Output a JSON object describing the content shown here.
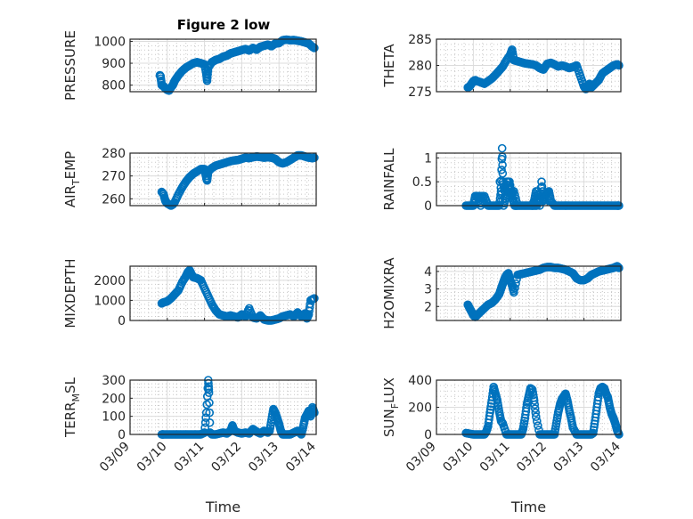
{
  "figure": {
    "title": "Figure 2 low",
    "marker_color": "#0072BD"
  },
  "chart_data": [
    {
      "type": "scatter",
      "ylabel": "PRESSURE",
      "ylim": [
        770,
        1010
      ],
      "yticks": [
        800,
        900,
        1000
      ],
      "xlim": [
        0,
        5
      ],
      "xticklabels": [
        "03/09",
        "03/10",
        "03/11",
        "03/12",
        "03/13",
        "03/14"
      ],
      "xlabel": "",
      "grid": true,
      "x": [
        0.8,
        0.82,
        0.85,
        0.9,
        0.95,
        1.0,
        1.05,
        1.1,
        1.15,
        1.2,
        1.3,
        1.4,
        1.5,
        1.6,
        1.7,
        1.8,
        1.9,
        2.0,
        2.05,
        2.07,
        2.1,
        2.2,
        2.3,
        2.4,
        2.5,
        2.6,
        2.7,
        2.8,
        2.9,
        3.0,
        3.1,
        3.2,
        3.3,
        3.4,
        3.5,
        3.6,
        3.7,
        3.8,
        3.9,
        4.0,
        4.1,
        4.2,
        4.3,
        4.4,
        4.5,
        4.6,
        4.7,
        4.8,
        4.9,
        4.95
      ],
      "y": [
        845,
        840,
        800,
        795,
        785,
        778,
        775,
        790,
        800,
        820,
        845,
        865,
        880,
        890,
        900,
        905,
        900,
        895,
        850,
        820,
        880,
        905,
        915,
        920,
        930,
        935,
        945,
        950,
        955,
        960,
        965,
        958,
        970,
        962,
        975,
        980,
        985,
        978,
        990,
        992,
        1005,
        1008,
        1005,
        1006,
        1003,
        1000,
        995,
        990,
        975,
        970
      ]
    },
    {
      "type": "scatter",
      "ylabel": "THETA",
      "ylim": [
        275,
        285
      ],
      "yticks": [
        275,
        280,
        285
      ],
      "xlim": [
        0,
        5
      ],
      "xticklabels": [
        "03/09",
        "03/10",
        "03/11",
        "03/12",
        "03/13",
        "03/14"
      ],
      "xlabel": "",
      "grid": true,
      "x": [
        0.85,
        0.9,
        0.95,
        1.0,
        1.05,
        1.1,
        1.2,
        1.3,
        1.4,
        1.5,
        1.6,
        1.7,
        1.8,
        1.9,
        2.0,
        2.05,
        2.1,
        2.2,
        2.3,
        2.4,
        2.5,
        2.6,
        2.7,
        2.8,
        2.9,
        3.0,
        3.1,
        3.2,
        3.3,
        3.4,
        3.5,
        3.6,
        3.7,
        3.8,
        3.9,
        4.0,
        4.05,
        4.1,
        4.15,
        4.2,
        4.3,
        4.4,
        4.5,
        4.6,
        4.7,
        4.8,
        4.9,
        4.95
      ],
      "y": [
        275.8,
        276,
        276.5,
        277,
        277.2,
        277,
        276.8,
        276.5,
        277,
        277.5,
        278.2,
        279,
        279.8,
        281,
        282,
        283,
        281,
        280.8,
        280.6,
        280.4,
        280.3,
        280.2,
        280,
        279.5,
        279.2,
        280.3,
        280.5,
        280.2,
        279.8,
        280,
        279.8,
        279.5,
        279.7,
        280,
        278,
        276,
        275.5,
        276,
        276.5,
        275.8,
        276.5,
        277.2,
        278.5,
        279,
        279.5,
        280,
        280.2,
        280
      ]
    },
    {
      "type": "scatter",
      "ylabel": "AIR_TEMP",
      "ylim": [
        257,
        280
      ],
      "yticks": [
        260,
        270,
        280
      ],
      "xlim": [
        0,
        5
      ],
      "xticklabels": [
        "03/09",
        "03/10",
        "03/11",
        "03/12",
        "03/13",
        "03/14"
      ],
      "xlabel": "",
      "grid": true,
      "x": [
        0.85,
        0.9,
        0.95,
        1.0,
        1.05,
        1.1,
        1.15,
        1.2,
        1.3,
        1.4,
        1.5,
        1.6,
        1.7,
        1.8,
        1.9,
        2.0,
        2.05,
        2.07,
        2.1,
        2.2,
        2.3,
        2.4,
        2.5,
        2.6,
        2.7,
        2.8,
        2.9,
        3.0,
        3.1,
        3.2,
        3.3,
        3.4,
        3.5,
        3.6,
        3.7,
        3.8,
        3.9,
        4.0,
        4.1,
        4.2,
        4.3,
        4.4,
        4.5,
        4.6,
        4.7,
        4.8,
        4.9,
        4.95
      ],
      "y": [
        263,
        262,
        259,
        258,
        257.5,
        257,
        257.5,
        258.5,
        262,
        265,
        267.5,
        269.5,
        271,
        272,
        273,
        273,
        269,
        268,
        272,
        273.5,
        274.5,
        275,
        275.5,
        276,
        276.5,
        276.8,
        277,
        277.5,
        278,
        277.8,
        278.2,
        278.5,
        278.3,
        278,
        278.2,
        278,
        277.5,
        276,
        275.5,
        276,
        277,
        278,
        279,
        279,
        278.5,
        278,
        277.8,
        278
      ]
    },
    {
      "type": "scatter",
      "ylabel": "RAINFALL",
      "ylim": [
        0,
        1.1
      ],
      "yticks": [
        0,
        0.5,
        1
      ],
      "xlim": [
        0,
        5
      ],
      "xticklabels": [
        "03/09",
        "03/10",
        "03/11",
        "03/12",
        "03/13",
        "03/14"
      ],
      "xlabel": "",
      "grid": true,
      "x": [
        0.8,
        0.9,
        1.0,
        1.05,
        1.1,
        1.2,
        1.3,
        1.4,
        1.5,
        1.6,
        1.7,
        1.75,
        1.78,
        1.8,
        1.85,
        1.9,
        1.95,
        2.0,
        2.1,
        2.2,
        2.3,
        2.4,
        2.5,
        2.6,
        2.7,
        2.75,
        2.8,
        2.85,
        2.9,
        2.95,
        3.0,
        3.05,
        3.1,
        3.2,
        3.3,
        3.4,
        3.5,
        3.6,
        3.7,
        3.8,
        3.9,
        4.0,
        4.1,
        4.2,
        4.3,
        4.4,
        4.5,
        4.6,
        4.7,
        4.8,
        4.9,
        4.95,
        1.12,
        1.25,
        1.72,
        1.82,
        1.9,
        1.98,
        2.05,
        2.12,
        2.18,
        2.6,
        2.65,
        2.7,
        3.05,
        2.72
      ],
      "y": [
        0,
        0,
        0,
        0.2,
        0.2,
        0,
        0.2,
        0,
        0,
        0,
        0,
        0.3,
        1.2,
        0.5,
        0.3,
        0.5,
        0.5,
        0.2,
        0.3,
        0,
        0,
        0,
        0,
        0,
        0,
        0.3,
        0,
        0.5,
        0.1,
        0.2,
        0.25,
        0.3,
        0.1,
        0,
        0,
        0,
        0,
        0,
        0,
        0,
        0,
        0,
        0,
        0,
        0,
        0,
        0,
        0,
        0,
        0,
        0,
        0,
        0.2,
        0.2,
        0.5,
        0,
        0.2,
        0.5,
        0.2,
        0,
        0,
        0,
        0.1,
        0.3,
        0.1,
        0
      ],
      "values_note": "0 for most points"
    },
    {
      "type": "scatter",
      "ylabel": "MIXDEPTH",
      "ylim": [
        0,
        2700
      ],
      "yticks": [
        0,
        1000,
        2000
      ],
      "xlim": [
        0,
        5
      ],
      "xticklabels": [
        "03/09",
        "03/10",
        "03/11",
        "03/12",
        "03/13",
        "03/14"
      ],
      "xlabel": "",
      "grid": true,
      "x": [
        0.85,
        0.9,
        1.0,
        1.1,
        1.2,
        1.3,
        1.4,
        1.5,
        1.55,
        1.6,
        1.65,
        1.7,
        1.8,
        1.9,
        2.0,
        2.1,
        2.2,
        2.3,
        2.4,
        2.5,
        2.6,
        2.7,
        2.8,
        2.9,
        3.0,
        3.1,
        3.2,
        3.3,
        3.4,
        3.5,
        3.6,
        3.7,
        3.8,
        3.9,
        4.0,
        4.1,
        4.2,
        4.3,
        4.4,
        4.5,
        4.6,
        4.7,
        4.75,
        4.8,
        4.85,
        4.9,
        4.95
      ],
      "y": [
        850,
        900,
        950,
        1100,
        1300,
        1500,
        1900,
        2200,
        2400,
        2500,
        2300,
        2150,
        2100,
        2000,
        1600,
        1200,
        800,
        500,
        300,
        250,
        200,
        250,
        200,
        150,
        300,
        200,
        600,
        150,
        100,
        250,
        50,
        0,
        0,
        50,
        100,
        200,
        250,
        300,
        200,
        400,
        200,
        350,
        100,
        300,
        1000,
        1050,
        1100
      ]
    },
    {
      "type": "scatter",
      "ylabel": "H2OMIXRA",
      "ylim": [
        1.2,
        4.3
      ],
      "yticks": [
        2,
        3,
        4
      ],
      "xlim": [
        0,
        5
      ],
      "xticklabels": [
        "03/09",
        "03/10",
        "03/11",
        "03/12",
        "03/13",
        "03/14"
      ],
      "xlabel": "",
      "grid": true,
      "x": [
        0.85,
        0.9,
        0.95,
        1.0,
        1.05,
        1.1,
        1.2,
        1.3,
        1.4,
        1.5,
        1.6,
        1.7,
        1.75,
        1.8,
        1.85,
        1.9,
        1.95,
        2.0,
        2.05,
        2.1,
        2.2,
        2.3,
        2.4,
        2.5,
        2.6,
        2.7,
        2.8,
        2.9,
        3.0,
        3.1,
        3.2,
        3.3,
        3.4,
        3.5,
        3.6,
        3.7,
        3.8,
        3.9,
        4.0,
        4.1,
        4.2,
        4.3,
        4.4,
        4.5,
        4.6,
        4.7,
        4.8,
        4.9,
        4.95
      ],
      "y": [
        2.1,
        1.9,
        1.7,
        1.5,
        1.4,
        1.5,
        1.7,
        1.9,
        2.1,
        2.2,
        2.4,
        2.7,
        3.0,
        3.3,
        3.6,
        3.8,
        3.9,
        3.5,
        3.2,
        2.8,
        3.8,
        3.85,
        3.9,
        3.95,
        4.0,
        4.05,
        4.1,
        4.2,
        4.25,
        4.25,
        4.2,
        4.2,
        4.15,
        4.1,
        4.0,
        3.9,
        3.6,
        3.5,
        3.5,
        3.6,
        3.8,
        3.9,
        4.0,
        4.05,
        4.1,
        4.15,
        4.2,
        4.3,
        4.2
      ]
    },
    {
      "type": "scatter",
      "ylabel": "TERR_MSL",
      "ylim": [
        0,
        300
      ],
      "yticks": [
        0,
        100,
        200,
        300
      ],
      "xlim": [
        0,
        5
      ],
      "xticklabels": [
        "03/09",
        "03/10",
        "03/11",
        "03/12",
        "03/13",
        "03/14"
      ],
      "xlabel": "Time",
      "grid": true,
      "x": [
        0.85,
        0.9,
        1.0,
        1.1,
        1.2,
        1.3,
        1.4,
        1.5,
        1.6,
        1.7,
        1.8,
        1.9,
        2.0,
        2.05,
        2.1,
        2.12,
        2.15,
        2.2,
        2.3,
        2.4,
        2.5,
        2.6,
        2.7,
        2.75,
        2.8,
        2.9,
        3.0,
        3.1,
        3.2,
        3.3,
        3.4,
        3.5,
        3.6,
        3.7,
        3.75,
        3.8,
        3.85,
        3.9,
        3.95,
        4.0,
        4.05,
        4.1,
        4.2,
        4.3,
        4.4,
        4.5,
        4.6,
        4.65,
        4.7,
        4.75,
        4.8,
        4.85,
        4.9,
        4.95
      ],
      "y": [
        0,
        0,
        0,
        0,
        0,
        0,
        0,
        0,
        0,
        0,
        0,
        0,
        10,
        120,
        300,
        230,
        10,
        0,
        0,
        5,
        10,
        5,
        20,
        50,
        20,
        10,
        5,
        10,
        5,
        30,
        15,
        5,
        20,
        10,
        20,
        80,
        140,
        120,
        90,
        60,
        20,
        0,
        0,
        0,
        10,
        20,
        0,
        40,
        90,
        110,
        130,
        100,
        150,
        120
      ]
    },
    {
      "type": "scatter",
      "ylabel": "SUN_FLUX",
      "ylim": [
        0,
        400
      ],
      "yticks": [
        0,
        200,
        400
      ],
      "xlim": [
        0,
        5
      ],
      "xticklabels": [
        "03/09",
        "03/10",
        "03/11",
        "03/12",
        "03/13",
        "03/14"
      ],
      "xlabel": "Time",
      "grid": true,
      "x": [
        0.8,
        0.9,
        1.0,
        1.1,
        1.2,
        1.3,
        1.35,
        1.4,
        1.45,
        1.5,
        1.55,
        1.6,
        1.65,
        1.7,
        1.75,
        1.8,
        1.9,
        2.0,
        2.1,
        2.2,
        2.3,
        2.35,
        2.4,
        2.45,
        2.5,
        2.55,
        2.6,
        2.65,
        2.7,
        2.8,
        2.9,
        3.0,
        3.1,
        3.2,
        3.25,
        3.3,
        3.35,
        3.4,
        3.45,
        3.5,
        3.55,
        3.6,
        3.65,
        3.7,
        3.8,
        3.9,
        4.0,
        4.1,
        4.2,
        4.25,
        4.3,
        4.35,
        4.4,
        4.45,
        4.5,
        4.55,
        4.6,
        4.65,
        4.7,
        4.75,
        4.8,
        4.85,
        4.9,
        4.95
      ],
      "y": [
        10,
        5,
        0,
        0,
        0,
        0,
        20,
        60,
        160,
        250,
        350,
        300,
        250,
        170,
        100,
        80,
        0,
        0,
        0,
        0,
        0,
        40,
        120,
        220,
        280,
        340,
        330,
        250,
        130,
        0,
        0,
        0,
        0,
        0,
        80,
        160,
        220,
        260,
        280,
        300,
        250,
        180,
        120,
        50,
        0,
        0,
        0,
        0,
        0,
        10,
        100,
        200,
        300,
        340,
        350,
        340,
        300,
        270,
        200,
        150,
        120,
        80,
        30,
        0
      ]
    }
  ]
}
